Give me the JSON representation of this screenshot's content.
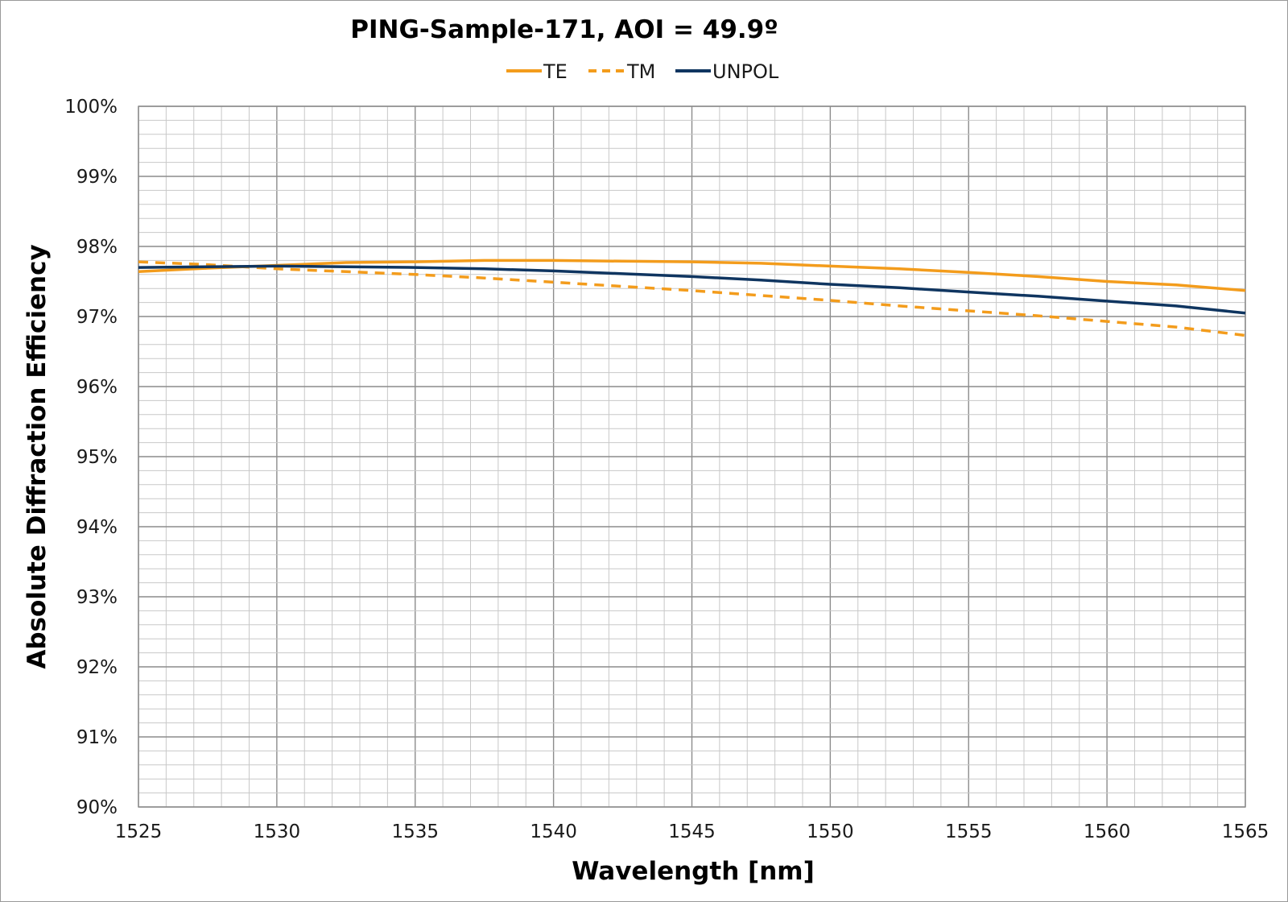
{
  "chart_data": {
    "type": "line",
    "title": "PING-Sample-171, AOI = 49.9º",
    "xlabel": "Wavelength [nm]",
    "ylabel": "Absolute Diffraction Efficiency",
    "xlim": [
      1525,
      1565
    ],
    "ylim": [
      90,
      100
    ],
    "x_ticks": [
      1525,
      1530,
      1535,
      1540,
      1545,
      1550,
      1555,
      1560,
      1565
    ],
    "x_minor_step": 1,
    "y_ticks": [
      90,
      91,
      92,
      93,
      94,
      95,
      96,
      97,
      98,
      99,
      100
    ],
    "y_minor_step": 0.2,
    "y_tick_labels": [
      "90%",
      "91%",
      "92%",
      "93%",
      "94%",
      "95%",
      "96%",
      "97%",
      "98%",
      "99%",
      "100%"
    ],
    "grid": true,
    "legend_position": "top-center",
    "x": [
      1525,
      1527.5,
      1530,
      1532.5,
      1535,
      1537.5,
      1540,
      1542.5,
      1545,
      1547.5,
      1550,
      1552.5,
      1555,
      1557.5,
      1560,
      1562.5,
      1565
    ],
    "series": [
      {
        "name": "TE",
        "color": "#f39c1c",
        "dash": "solid",
        "values": [
          97.64,
          97.69,
          97.73,
          97.77,
          97.78,
          97.8,
          97.8,
          97.79,
          97.78,
          97.76,
          97.72,
          97.68,
          97.63,
          97.57,
          97.5,
          97.45,
          97.37
        ]
      },
      {
        "name": "TM",
        "color": "#f39c1c",
        "dash": "dashed",
        "values": [
          97.78,
          97.74,
          97.68,
          97.64,
          97.6,
          97.55,
          97.49,
          97.43,
          97.37,
          97.3,
          97.23,
          97.15,
          97.08,
          97.01,
          96.93,
          96.85,
          96.73
        ]
      },
      {
        "name": "UNPOL",
        "color": "#0f3560",
        "dash": "solid",
        "values": [
          97.7,
          97.71,
          97.72,
          97.71,
          97.7,
          97.68,
          97.65,
          97.61,
          97.57,
          97.52,
          97.46,
          97.41,
          97.35,
          97.29,
          97.22,
          97.15,
          97.05
        ]
      }
    ]
  }
}
